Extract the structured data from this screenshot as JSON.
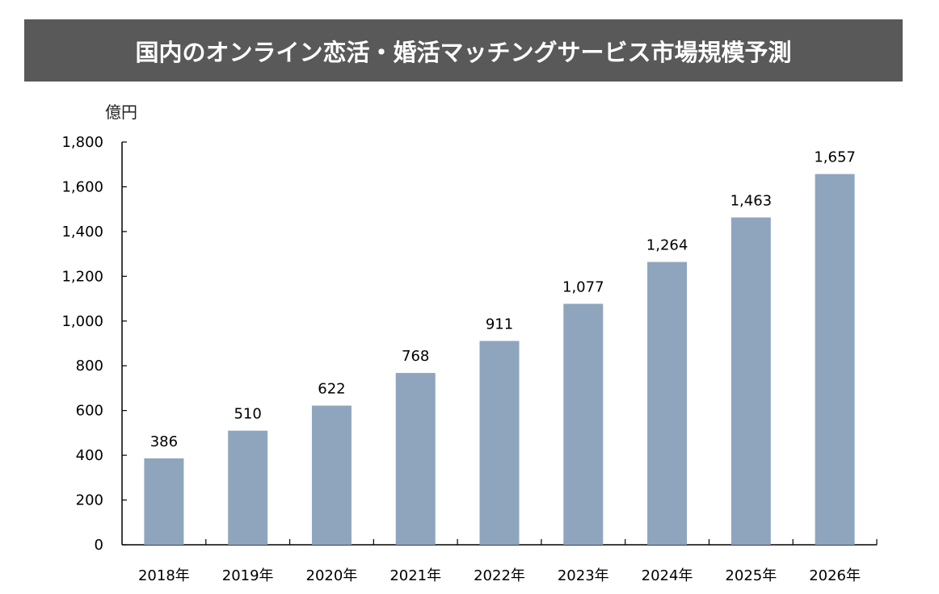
{
  "chart_data": {
    "type": "bar",
    "title": "国内のオンライン恋活・婚活マッチングサービス市場規模予測",
    "ylabel": "億円",
    "xlabel": "",
    "categories": [
      "2018年",
      "2019年",
      "2020年",
      "2021年",
      "2022年",
      "2023年",
      "2024年",
      "2025年",
      "2026年"
    ],
    "values": [
      386,
      510,
      622,
      768,
      911,
      1077,
      1264,
      1463,
      1657
    ],
    "value_labels": [
      "386",
      "510",
      "622",
      "768",
      "911",
      "1,077",
      "1,264",
      "1,463",
      "1,657"
    ],
    "ylim": [
      0,
      1800
    ],
    "yticks": [
      0,
      200,
      400,
      600,
      800,
      1000,
      1200,
      1400,
      1600,
      1800
    ],
    "ytick_labels": [
      "0",
      "200",
      "400",
      "600",
      "800",
      "1,000",
      "1,200",
      "1,400",
      "1,600",
      "1,800"
    ],
    "grid": false,
    "bar_color": "#8fa5bd",
    "title_bg": "#595959"
  }
}
